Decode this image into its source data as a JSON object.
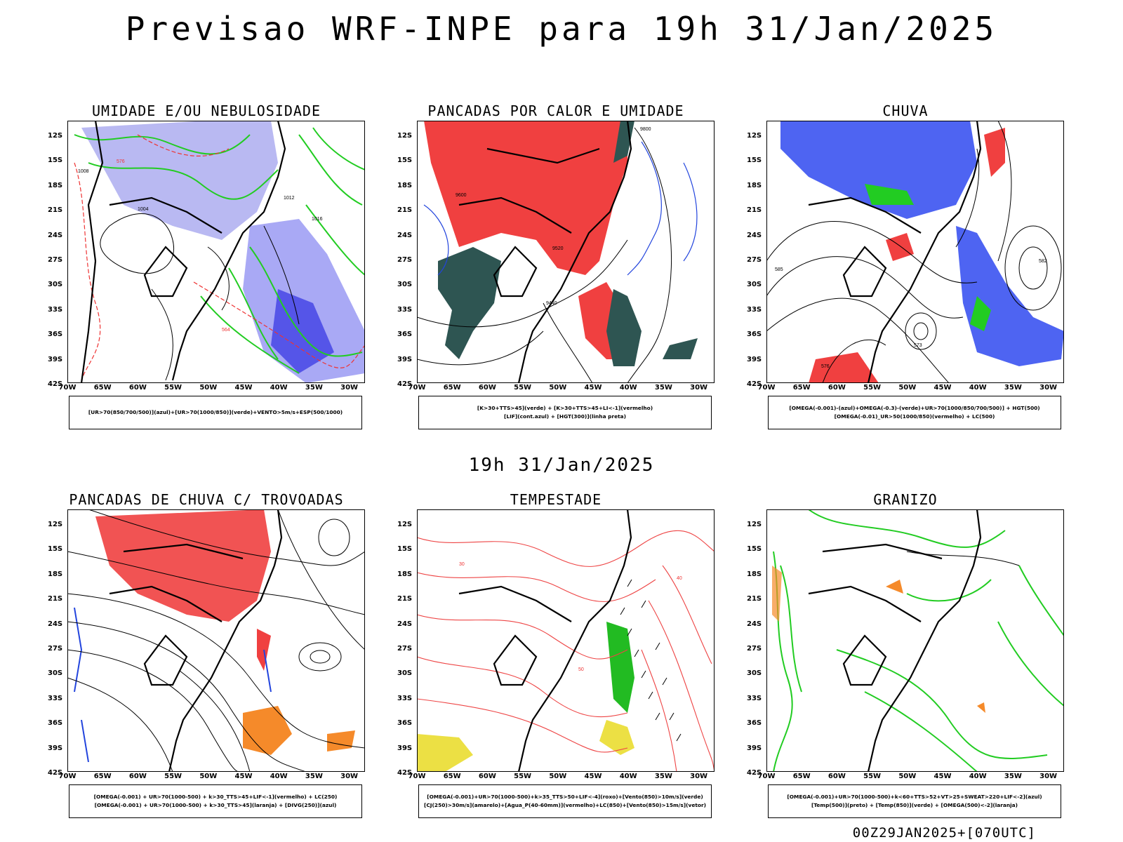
{
  "title": "Previsao WRF-INPE  para 19h 31/Jan/2025",
  "mid_time": "19h 31/Jan/2025",
  "footer": "00Z29JAN2025+[070UTC]",
  "lat_labels": [
    "12S",
    "15S",
    "18S",
    "21S",
    "24S",
    "27S",
    "30S",
    "33S",
    "36S",
    "39S",
    "42S"
  ],
  "lon_labels": [
    "70W",
    "65W",
    "60W",
    "55W",
    "50W",
    "45W",
    "40W",
    "35W",
    "30W"
  ],
  "panels": [
    {
      "title": "UMIDADE E/OU NEBULOSIDADE",
      "legend": [
        "[UR>70(850/700/500)](azul)+[UR>70(1000/850)](verde)+VENTO>5m/s+ESP(500/1000)"
      ],
      "contour_labels": [
        "1008",
        "1004",
        "1012",
        "1016",
        "576",
        "564"
      ]
    },
    {
      "title": "PANCADAS POR CALOR E UMIDADE",
      "legend": [
        "[K>30+TTS>45](verde) + [K>30+TTS>45+LI<-1](vermelho)",
        "[LIF](cont.azul) + [HGT(300)](linha preta)"
      ],
      "contour_labels": [
        "9600",
        "9520",
        "9440",
        "9800"
      ]
    },
    {
      "title": "CHUVA",
      "legend": [
        "[OMEGA(-0.001)-(azul)+OMEGA(-0.3)-(verde)+UR>70(1000/850/700/500)] + HGT(500)",
        "[OMEGA(-0.01)_UR>50(1000/850)(vermelho) + LC(500)"
      ],
      "contour_labels": [
        "585",
        "573",
        "576",
        "582"
      ]
    },
    {
      "title": "PANCADAS DE CHUVA C/ TROVOADAS",
      "legend": [
        "[OMEGA(-0.001) + UR>70(1000-500) + k>30_TTS>45+LIF<-1](vermelho) + LC(250)",
        "[OMEGA(-0.001) + UR>70(1000-500) + k>30_TTS>45](laranja) + [DIVG(250)](azul)"
      ],
      "contour_labels": []
    },
    {
      "title": "TEMPESTADE",
      "legend": [
        "[OMEGA(-0.001)+UR>70(1000-500)+k>35_TTS>50+LIF<-4](roxo)+[Vento(850)>10m/s](verde)",
        "[CJ(250)>30m/s](amarelo)+[Agua_P(40-60mm)](vermelho)+LC(850)+[Vento(850)>15m/s](vetor)"
      ],
      "contour_labels": [
        "40",
        "30",
        "50"
      ]
    },
    {
      "title": "GRANIZO",
      "legend": [
        "[OMEGA(-0.001)+UR>70(1000-500)+k<60+TTS>52+VT>25+SWEAT>220+LIF<-2](azul)",
        "[Temp(500)](preto) + [Temp(850)](verde) + [OMEGA(500)<-2](laranja)"
      ],
      "contour_labels": []
    }
  ]
}
